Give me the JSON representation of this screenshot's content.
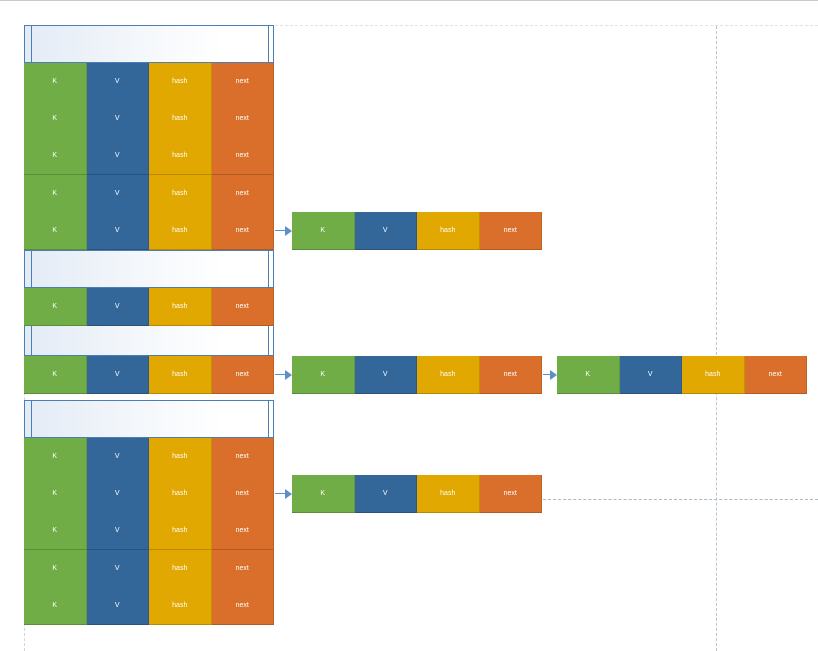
{
  "labels": {
    "key": "K",
    "value": "V",
    "hash": "hash",
    "next": "next"
  },
  "colors": {
    "key": "#70ad47",
    "value": "#336699",
    "hash": "#e0a800",
    "next": "#d96f2a",
    "connector": "#5b8fc7"
  },
  "table": {
    "entries": 12,
    "groups": [
      {
        "rows": 5,
        "chains": [
          {
            "row": 5,
            "length": 1
          }
        ]
      },
      {
        "rows": 1,
        "chains": []
      },
      {
        "rows": 1,
        "chains": [
          {
            "row": 1,
            "length": 2
          }
        ]
      },
      {
        "rows": 5,
        "chains": [
          {
            "row": 2,
            "length": 1
          }
        ]
      }
    ]
  }
}
